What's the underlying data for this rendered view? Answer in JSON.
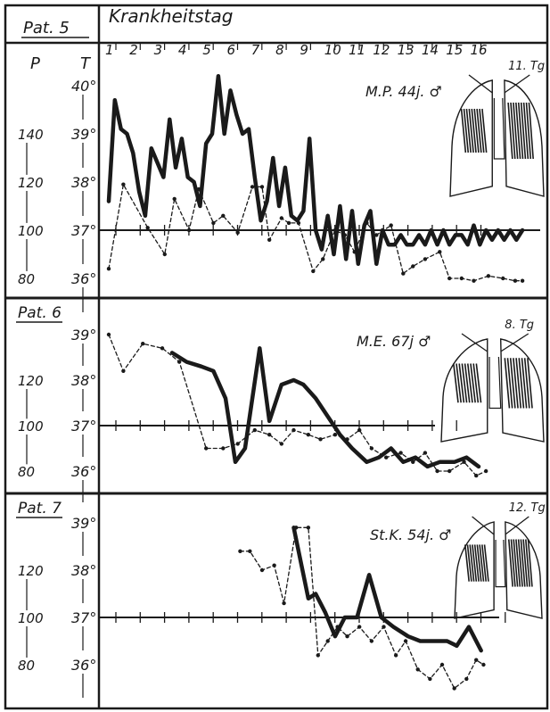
{
  "header": {
    "patient_col_label": "Pat. 5",
    "p_axis_label": "P",
    "t_axis_label": "T",
    "day_axis_label": "Krankheitstag",
    "days": [
      "1",
      "2",
      "3",
      "4",
      "5",
      "6",
      "7",
      "8",
      "9",
      "10",
      "11",
      "12",
      "13",
      "14",
      "15",
      "16"
    ]
  },
  "colors": {
    "ink": "#1a1a1a",
    "paper": "#ffffff"
  },
  "chart_data": [
    {
      "type": "line",
      "patient": "Pat. 5",
      "annotation": "M.P. 44j. ♂",
      "sketch_label": "11. Tg",
      "pulse_ticks": [
        "140",
        "120",
        "100",
        "80"
      ],
      "temp_ticks": [
        "40°",
        "39°",
        "38°",
        "37°",
        "36°"
      ],
      "ylim_temp": [
        36,
        40
      ],
      "ylim_pulse": [
        80,
        140
      ],
      "series": [
        {
          "key": "temperature",
          "x": [
            1,
            1.25,
            1.5,
            1.75,
            2,
            2.25,
            2.5,
            2.75,
            3,
            3.25,
            3.5,
            3.75,
            4,
            4.25,
            4.5,
            4.75,
            5,
            5.25,
            5.5,
            5.75,
            6,
            6.25,
            6.5,
            6.75,
            7,
            7.25,
            7.5,
            7.75,
            8,
            8.25,
            8.5,
            8.75,
            9,
            9.25,
            9.5,
            9.75,
            10,
            10.25,
            10.5,
            10.75,
            11,
            11.25,
            11.5,
            11.75,
            12,
            12.25,
            12.5,
            12.75,
            13,
            13.25,
            13.5,
            13.75,
            14,
            14.25,
            14.5,
            14.75,
            15,
            15.25,
            15.5,
            15.75,
            16,
            16.25,
            16.5,
            16.75,
            17,
            17.25,
            17.5,
            17.75,
            18
          ],
          "values": [
            37.6,
            39.7,
            39.1,
            39.0,
            38.6,
            37.8,
            37.3,
            38.7,
            38.4,
            38.1,
            39.3,
            38.3,
            38.9,
            38.1,
            38.0,
            37.5,
            38.8,
            39.0,
            40.2,
            39.0,
            39.9,
            39.4,
            39.0,
            39.1,
            38.1,
            37.2,
            37.6,
            38.5,
            37.5,
            38.3,
            37.3,
            37.2,
            37.4,
            38.9,
            37.0,
            36.6,
            37.3,
            36.5,
            37.5,
            36.4,
            37.4,
            36.3,
            37.1,
            37.4,
            36.3,
            37.0,
            36.7,
            36.7,
            36.9,
            36.7,
            36.7,
            36.9,
            36.7,
            37.0,
            36.7,
            37.0,
            36.7,
            36.9,
            36.9,
            36.7,
            37.1,
            36.7,
            37.0,
            36.8,
            37.0,
            36.8,
            37.0,
            36.8,
            37.0
          ]
        },
        {
          "key": "pulse",
          "x": [
            1,
            1.6,
            2.6,
            3.3,
            3.7,
            4.3,
            4.7,
            5.3,
            5.7,
            6.3,
            6.9,
            7.3,
            7.6,
            8.1,
            8.4,
            8.8,
            9.4,
            9.8,
            10.3,
            10.7,
            11.1,
            11.6,
            12.0,
            12.6,
            13.1,
            13.5,
            14.0,
            14.6,
            15.0,
            15.5,
            16.0,
            16.6,
            17.2,
            17.7,
            18.0
          ],
          "values": [
            84,
            119,
            101,
            90,
            113,
            100,
            117,
            103,
            106,
            99,
            118,
            118,
            96,
            105,
            103,
            103,
            83,
            88,
            100,
            98,
            91,
            103,
            98,
            102,
            82,
            85,
            88,
            91,
            80,
            80,
            79,
            81,
            80,
            79,
            79
          ]
        }
      ]
    },
    {
      "type": "line",
      "patient": "Pat. 6",
      "annotation": "M.E. 67j ♂",
      "sketch_label": "8. Tg",
      "pulse_ticks": [
        "120",
        "100",
        "80"
      ],
      "temp_ticks": [
        "39°",
        "38°",
        "37°",
        "36°"
      ],
      "ylim_temp": [
        36,
        39
      ],
      "ylim_pulse": [
        80,
        120
      ],
      "series": [
        {
          "key": "temperature",
          "x": [
            3.6,
            4.2,
            4.8,
            5.3,
            5.8,
            6.2,
            6.6,
            7.2,
            7.6,
            8.1,
            8.6,
            9.0,
            9.5,
            10.0,
            10.5,
            11.0,
            11.6,
            12.1,
            12.6,
            13.1,
            13.6,
            14.1,
            14.6,
            15.2,
            15.7,
            16.2
          ],
          "values": [
            38.6,
            38.4,
            38.3,
            38.2,
            37.6,
            36.2,
            36.5,
            38.7,
            37.1,
            37.9,
            38.0,
            37.9,
            37.6,
            37.2,
            36.8,
            36.5,
            36.2,
            36.3,
            36.5,
            36.2,
            36.3,
            36.1,
            36.2,
            36.2,
            36.3,
            36.1
          ]
        },
        {
          "key": "pulse",
          "x": [
            1,
            1.6,
            2.4,
            3.2,
            3.9,
            5.0,
            5.7,
            6.3,
            7.0,
            7.6,
            8.1,
            8.6,
            9.2,
            9.7,
            10.3,
            10.8,
            11.3,
            11.8,
            12.4,
            13.0,
            13.5,
            14.0,
            14.5,
            15.0,
            15.6,
            16.1,
            16.5
          ],
          "values": [
            39.0,
            38.2,
            38.8,
            38.7,
            38.4,
            36.5,
            36.5,
            36.6,
            36.9,
            36.8,
            36.6,
            36.9,
            36.8,
            36.7,
            36.8,
            36.7,
            36.9,
            36.5,
            36.3,
            36.4,
            36.2,
            36.4,
            36.0,
            36.0,
            36.2,
            35.9,
            36.0
          ]
        }
      ]
    },
    {
      "type": "line",
      "patient": "Pat. 7",
      "annotation": "St.K. 54j. ♂",
      "sketch_label": "12. Tg",
      "pulse_ticks": [
        "120",
        "100",
        "80"
      ],
      "temp_ticks": [
        "39°",
        "38°",
        "37°",
        "36°"
      ],
      "ylim_temp": [
        36,
        39
      ],
      "ylim_pulse": [
        80,
        120
      ],
      "series": [
        {
          "key": "temperature",
          "x": [
            8.6,
            9.2,
            9.5,
            9.9,
            10.3,
            10.7,
            11.2,
            11.7,
            12.2,
            12.7,
            13.3,
            13.8,
            14.4,
            14.9,
            15.3,
            15.8,
            16.3
          ],
          "values": [
            38.9,
            37.4,
            37.5,
            37.1,
            36.6,
            37.0,
            37.0,
            37.9,
            37.0,
            36.8,
            36.6,
            36.5,
            36.5,
            36.5,
            36.4,
            36.8,
            36.3
          ]
        },
        {
          "key": "pulse",
          "x": [
            6.4,
            6.8,
            7.3,
            7.8,
            8.2,
            8.7,
            9.2,
            9.6,
            10.0,
            10.4,
            10.8,
            11.3,
            11.8,
            12.3,
            12.8,
            13.2,
            13.7,
            14.2,
            14.7,
            15.2,
            15.7,
            16.1,
            16.4
          ],
          "values": [
            38.4,
            38.4,
            38.0,
            38.1,
            37.3,
            38.9,
            38.9,
            36.2,
            36.5,
            36.8,
            36.6,
            36.8,
            36.5,
            36.8,
            36.2,
            36.5,
            35.9,
            35.7,
            36.0,
            35.5,
            35.7,
            36.1,
            36.0
          ]
        }
      ]
    }
  ]
}
